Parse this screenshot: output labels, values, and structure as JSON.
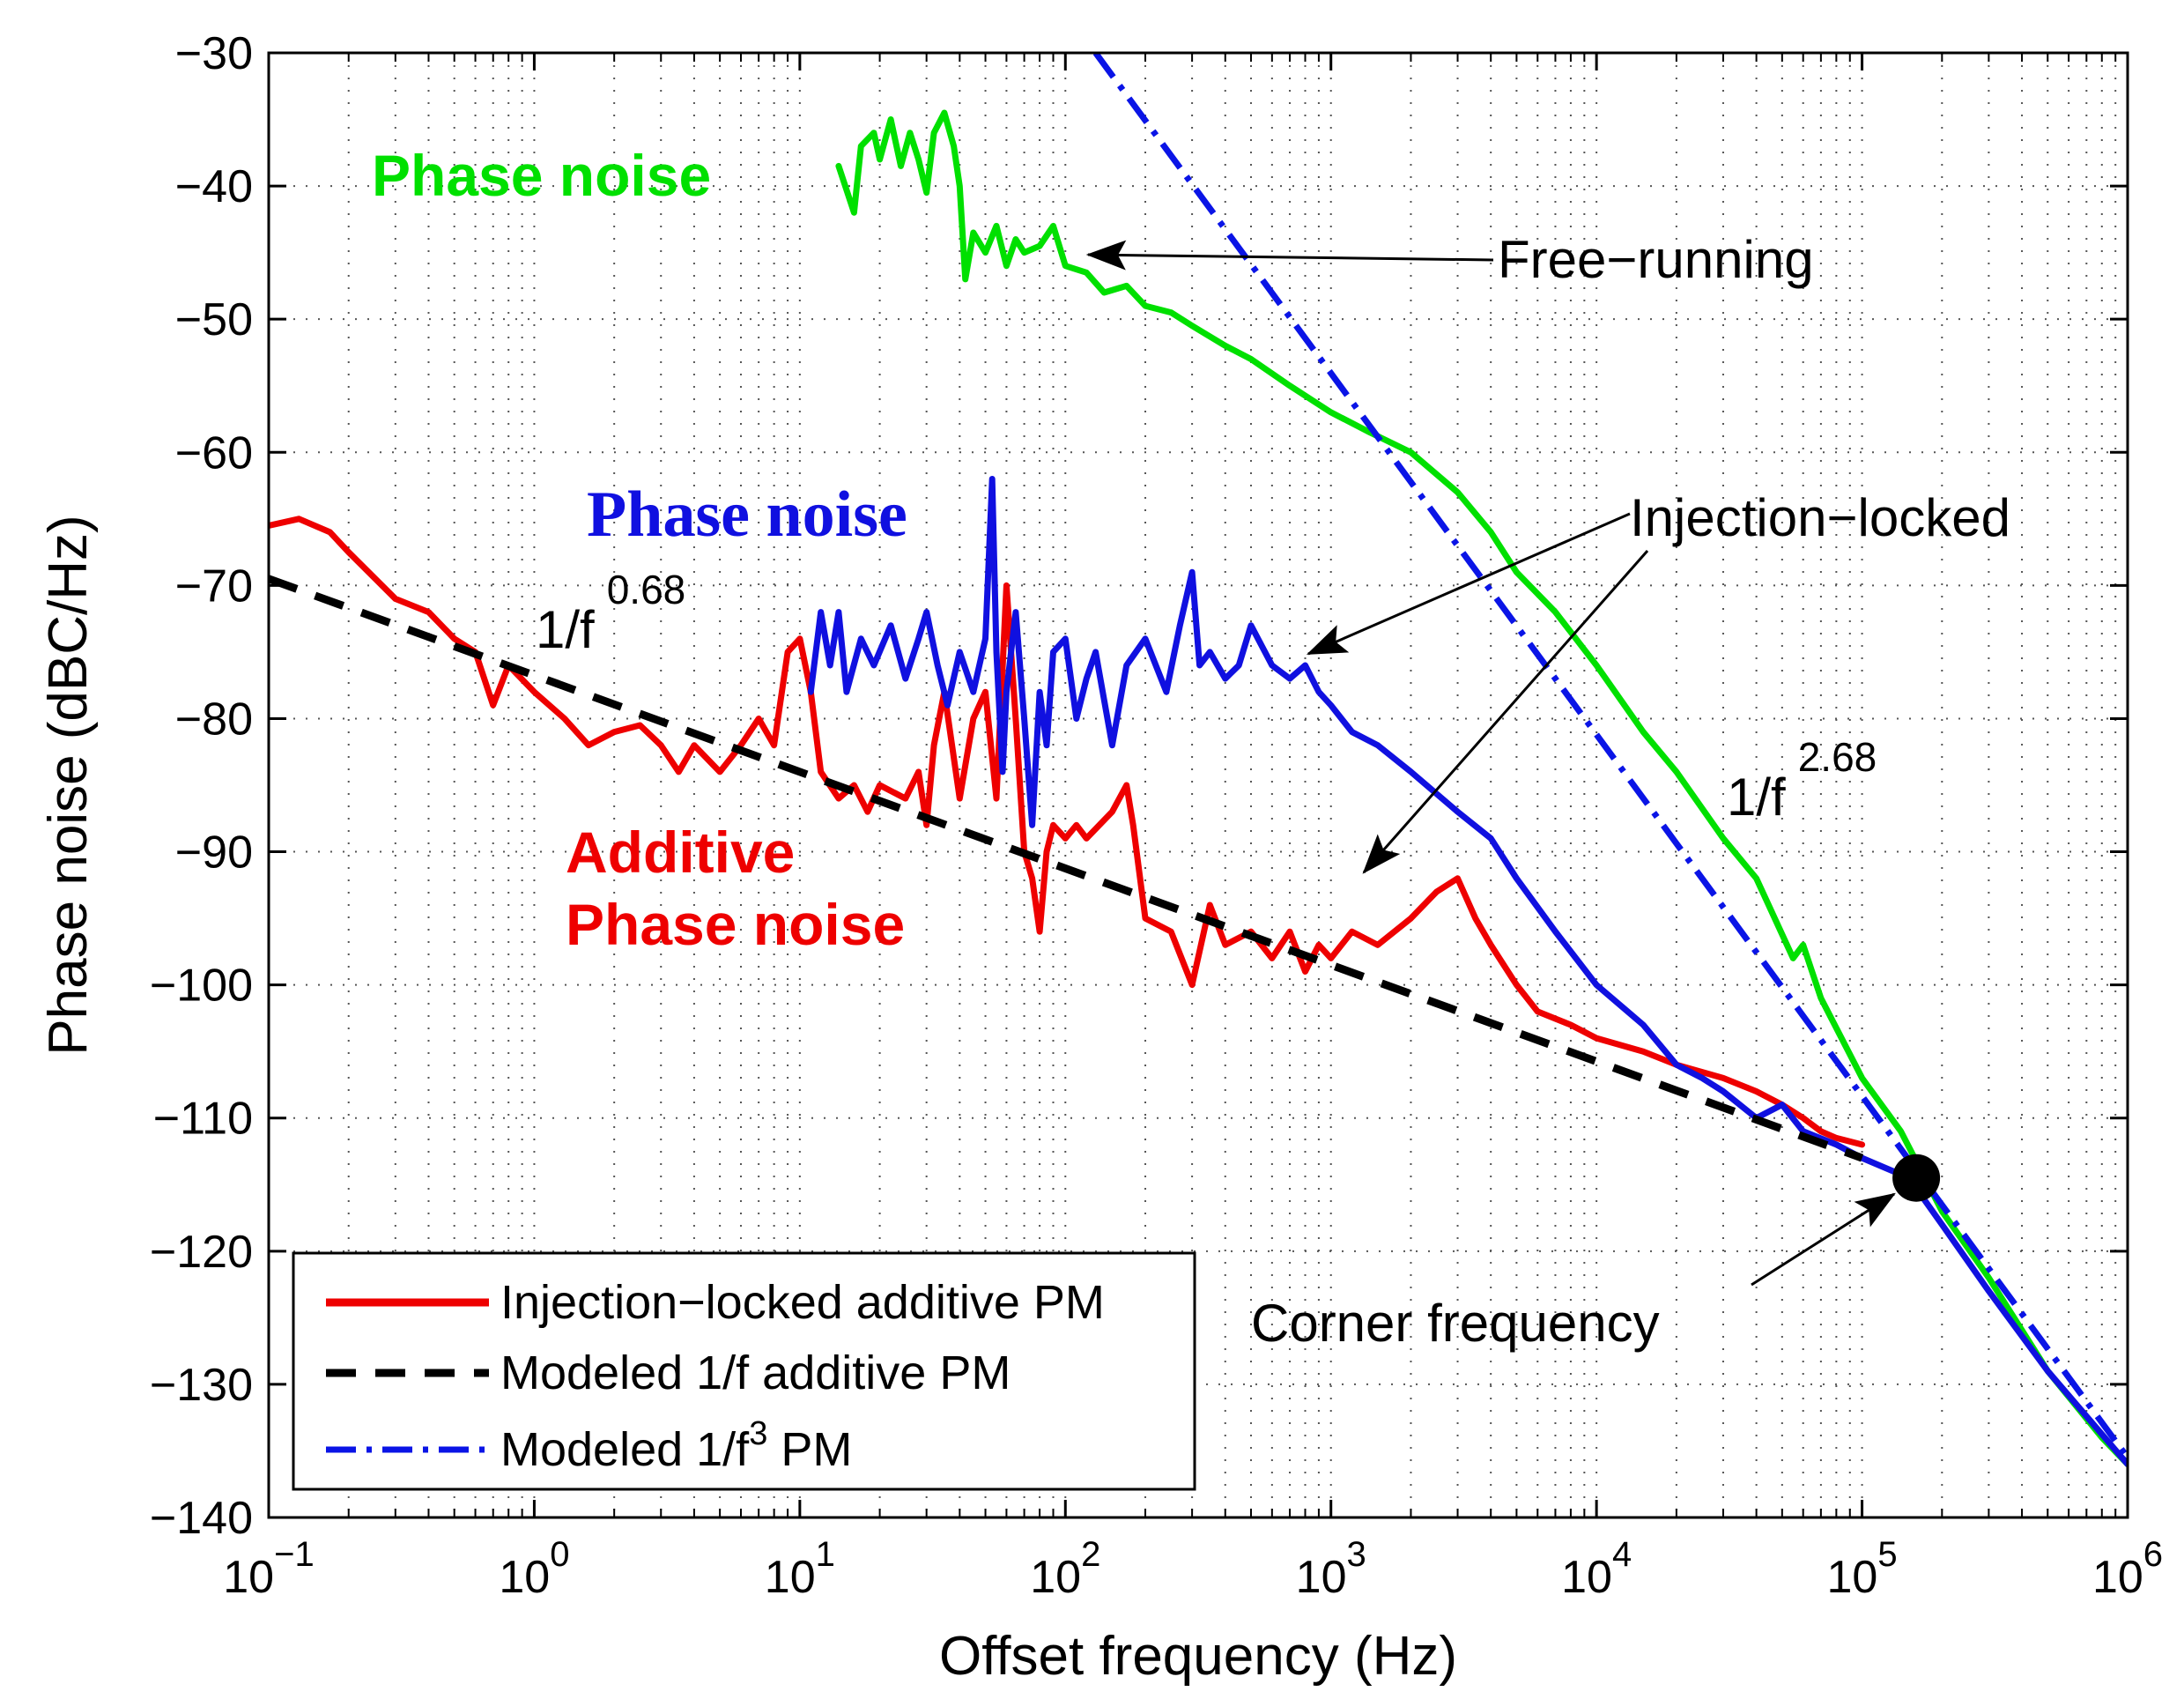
{
  "chart_data": {
    "type": "line",
    "xscale": "log",
    "xlim": [
      0.1,
      1000000
    ],
    "ylim": [
      -140,
      -30
    ],
    "grid": true,
    "xlabel": "Offset frequency (Hz)",
    "ylabel": "Phase noise (dBC/Hz)",
    "x_ticks": [
      {
        "base": "10",
        "exp": "−1",
        "value": 0.1
      },
      {
        "base": "10",
        "exp": "0",
        "value": 1
      },
      {
        "base": "10",
        "exp": "1",
        "value": 10
      },
      {
        "base": "10",
        "exp": "2",
        "value": 100
      },
      {
        "base": "10",
        "exp": "3",
        "value": 1000
      },
      {
        "base": "10",
        "exp": "4",
        "value": 10000
      },
      {
        "base": "10",
        "exp": "5",
        "value": 100000
      },
      {
        "base": "10",
        "exp": "6",
        "value": 1000000
      }
    ],
    "y_ticks": [
      {
        "label": "−30",
        "value": -30
      },
      {
        "label": "−40",
        "value": -40
      },
      {
        "label": "−50",
        "value": -50
      },
      {
        "label": "−60",
        "value": -60
      },
      {
        "label": "−70",
        "value": -70
      },
      {
        "label": "−80",
        "value": -80
      },
      {
        "label": "−90",
        "value": -90
      },
      {
        "label": "−100",
        "value": -100
      },
      {
        "label": "−110",
        "value": -110
      },
      {
        "label": "−120",
        "value": -120
      },
      {
        "label": "−130",
        "value": -130
      },
      {
        "label": "−140",
        "value": -140
      }
    ],
    "legend": {
      "position": "bottom-left",
      "entries": [
        {
          "text": "Injection−locked additive PM",
          "series": "red"
        },
        {
          "text": "Modeled 1/f additive PM",
          "series": "black"
        },
        {
          "text_main": "Modeled 1/f",
          "text_sup": "3",
          "text_tail": " PM",
          "series": "blue-dashdot"
        }
      ]
    },
    "series": [
      {
        "id": "green",
        "color": "#00e000",
        "style": "solid",
        "points": [
          [
            14,
            -38.5
          ],
          [
            16,
            -42
          ],
          [
            17,
            -37
          ],
          [
            19,
            -36
          ],
          [
            20,
            -38
          ],
          [
            22,
            -35
          ],
          [
            24,
            -38.5
          ],
          [
            26,
            -36
          ],
          [
            28,
            -38
          ],
          [
            30,
            -40.5
          ],
          [
            32,
            -36
          ],
          [
            35,
            -34.5
          ],
          [
            38,
            -37
          ],
          [
            40,
            -40
          ],
          [
            42,
            -47
          ],
          [
            45,
            -43.5
          ],
          [
            50,
            -45
          ],
          [
            55,
            -43
          ],
          [
            60,
            -46
          ],
          [
            65,
            -44
          ],
          [
            70,
            -45
          ],
          [
            80,
            -44.5
          ],
          [
            90,
            -43
          ],
          [
            100,
            -46
          ],
          [
            120,
            -46.5
          ],
          [
            140,
            -48
          ],
          [
            170,
            -47.5
          ],
          [
            200,
            -49
          ],
          [
            250,
            -49.5
          ],
          [
            300,
            -50.5
          ],
          [
            400,
            -52
          ],
          [
            500,
            -53
          ],
          [
            700,
            -55
          ],
          [
            1000,
            -57
          ],
          [
            1400,
            -58.5
          ],
          [
            2000,
            -60
          ],
          [
            3000,
            -63
          ],
          [
            4000,
            -66
          ],
          [
            5000,
            -69
          ],
          [
            7000,
            -72
          ],
          [
            10000,
            -76
          ],
          [
            15000,
            -81
          ],
          [
            20000,
            -84
          ],
          [
            30000,
            -89
          ],
          [
            40000,
            -92
          ],
          [
            55000,
            -98
          ],
          [
            60000,
            -97
          ],
          [
            70000,
            -101
          ],
          [
            100000,
            -107
          ],
          [
            140000,
            -111
          ],
          [
            200000,
            -117
          ],
          [
            300000,
            -122
          ],
          [
            500000,
            -129
          ],
          [
            800000,
            -134
          ],
          [
            1000000,
            -136
          ]
        ]
      },
      {
        "id": "blue",
        "color": "#1010e0",
        "style": "solid",
        "points": [
          [
            11,
            -78
          ],
          [
            12,
            -72
          ],
          [
            13,
            -76
          ],
          [
            14,
            -72
          ],
          [
            15,
            -78
          ],
          [
            17,
            -74
          ],
          [
            19,
            -76
          ],
          [
            22,
            -73
          ],
          [
            25,
            -77
          ],
          [
            28,
            -74
          ],
          [
            30,
            -72
          ],
          [
            33,
            -76
          ],
          [
            36,
            -79
          ],
          [
            40,
            -75
          ],
          [
            45,
            -78
          ],
          [
            50,
            -74
          ],
          [
            53,
            -62
          ],
          [
            55,
            -75
          ],
          [
            58,
            -84
          ],
          [
            60,
            -78
          ],
          [
            65,
            -72
          ],
          [
            70,
            -80
          ],
          [
            75,
            -88
          ],
          [
            80,
            -78
          ],
          [
            85,
            -82
          ],
          [
            90,
            -75
          ],
          [
            100,
            -74
          ],
          [
            110,
            -80
          ],
          [
            120,
            -77
          ],
          [
            130,
            -75
          ],
          [
            150,
            -82
          ],
          [
            170,
            -76
          ],
          [
            200,
            -74
          ],
          [
            240,
            -78
          ],
          [
            270,
            -73
          ],
          [
            300,
            -69
          ],
          [
            320,
            -76
          ],
          [
            350,
            -75
          ],
          [
            400,
            -77
          ],
          [
            450,
            -76
          ],
          [
            500,
            -73
          ],
          [
            600,
            -76
          ],
          [
            700,
            -77
          ],
          [
            800,
            -76
          ],
          [
            900,
            -78
          ],
          [
            1000,
            -79
          ],
          [
            1200,
            -81
          ],
          [
            1500,
            -82
          ],
          [
            2000,
            -84
          ],
          [
            3000,
            -87
          ],
          [
            4000,
            -89
          ],
          [
            5000,
            -92
          ],
          [
            7000,
            -96
          ],
          [
            10000,
            -100
          ],
          [
            15000,
            -103
          ],
          [
            20000,
            -106
          ],
          [
            25000,
            -107
          ],
          [
            30000,
            -108
          ],
          [
            40000,
            -110
          ],
          [
            50000,
            -109
          ],
          [
            60000,
            -111
          ],
          [
            80000,
            -112
          ],
          [
            100000,
            -113
          ],
          [
            150000,
            -114.5
          ],
          [
            200000,
            -118
          ],
          [
            300000,
            -123
          ],
          [
            500000,
            -129
          ],
          [
            1000000,
            -136
          ]
        ]
      },
      {
        "id": "red",
        "color": "#ee0000",
        "style": "solid",
        "points": [
          [
            0.1,
            -65.5
          ],
          [
            0.13,
            -65
          ],
          [
            0.17,
            -66
          ],
          [
            0.2,
            -67.5
          ],
          [
            0.3,
            -71
          ],
          [
            0.4,
            -72
          ],
          [
            0.5,
            -74
          ],
          [
            0.6,
            -75
          ],
          [
            0.7,
            -79
          ],
          [
            0.8,
            -76
          ],
          [
            1,
            -78
          ],
          [
            1.3,
            -80
          ],
          [
            1.6,
            -82
          ],
          [
            2,
            -81
          ],
          [
            2.5,
            -80.5
          ],
          [
            3,
            -82
          ],
          [
            3.5,
            -84
          ],
          [
            4,
            -82
          ],
          [
            5,
            -84
          ],
          [
            6,
            -82
          ],
          [
            7,
            -80
          ],
          [
            8,
            -82
          ],
          [
            9,
            -75
          ],
          [
            10,
            -74
          ],
          [
            11,
            -78
          ],
          [
            12,
            -84
          ],
          [
            14,
            -86
          ],
          [
            16,
            -85
          ],
          [
            18,
            -87
          ],
          [
            20,
            -85
          ],
          [
            25,
            -86
          ],
          [
            28,
            -84
          ],
          [
            30,
            -88
          ],
          [
            32,
            -82
          ],
          [
            35,
            -78
          ],
          [
            40,
            -86
          ],
          [
            45,
            -80
          ],
          [
            50,
            -78
          ],
          [
            55,
            -86
          ],
          [
            60,
            -70
          ],
          [
            65,
            -80
          ],
          [
            70,
            -90
          ],
          [
            75,
            -92
          ],
          [
            80,
            -96
          ],
          [
            85,
            -90
          ],
          [
            90,
            -88
          ],
          [
            100,
            -89
          ],
          [
            110,
            -88
          ],
          [
            120,
            -89
          ],
          [
            150,
            -87
          ],
          [
            170,
            -85
          ],
          [
            180,
            -88
          ],
          [
            200,
            -95
          ],
          [
            250,
            -96
          ],
          [
            300,
            -100
          ],
          [
            350,
            -94
          ],
          [
            400,
            -97
          ],
          [
            500,
            -96
          ],
          [
            600,
            -98
          ],
          [
            700,
            -96
          ],
          [
            800,
            -99
          ],
          [
            900,
            -97
          ],
          [
            1000,
            -98
          ],
          [
            1200,
            -96
          ],
          [
            1500,
            -97
          ],
          [
            2000,
            -95
          ],
          [
            2500,
            -93
          ],
          [
            3000,
            -92
          ],
          [
            3500,
            -95
          ],
          [
            4000,
            -97
          ],
          [
            5000,
            -100
          ],
          [
            6000,
            -102
          ],
          [
            8000,
            -103
          ],
          [
            10000,
            -104
          ],
          [
            15000,
            -105
          ],
          [
            20000,
            -106
          ],
          [
            30000,
            -107
          ],
          [
            40000,
            -108
          ],
          [
            50000,
            -109
          ],
          [
            60000,
            -110
          ],
          [
            70000,
            -111
          ],
          [
            80000,
            -111.5
          ],
          [
            100000,
            -112
          ]
        ]
      },
      {
        "id": "black",
        "color": "#000000",
        "style": "dashed",
        "points": [
          [
            0.1,
            -69.5
          ],
          [
            100000,
            -113
          ]
        ]
      },
      {
        "id": "blue-dashdot",
        "color": "#0a14e6",
        "style": "dashdot",
        "points": [
          [
            130,
            -30
          ],
          [
            1000000,
            -135.5
          ]
        ]
      }
    ],
    "annotations": {
      "green_label": "Phase noise",
      "blue_label": "Phase noise",
      "red_label_line1": "Additive",
      "red_label_line2": "Phase noise",
      "free_running": "Free−running",
      "injection_locked": "Injection−locked",
      "corner_frequency": "Corner frequency",
      "slope_low_base": "1/f",
      "slope_low_exp": "0.68",
      "slope_high_base": "1/f",
      "slope_high_exp": "2.68",
      "corner_point": [
        160000,
        -114.5
      ]
    }
  }
}
